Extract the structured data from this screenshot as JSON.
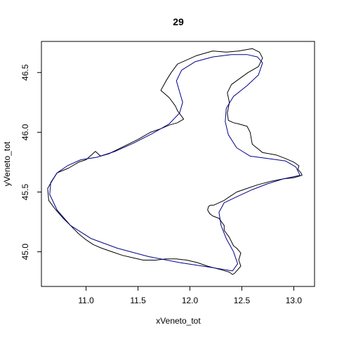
{
  "chart_data": {
    "type": "line",
    "title": "29",
    "xlabel": "xVeneto_tot",
    "ylabel": "yVeneto_tot",
    "xlim": [
      10.57,
      13.2
    ],
    "ylim": [
      44.71,
      46.76
    ],
    "x_ticks": [
      11.0,
      11.5,
      12.0,
      12.5,
      13.0
    ],
    "x_tick_labels": [
      "11.0",
      "11.5",
      "12.0",
      "12.5",
      "13.0"
    ],
    "y_ticks": [
      45.0,
      45.5,
      46.0,
      46.5
    ],
    "y_tick_labels": [
      "45.0",
      "45.5",
      "46.0",
      "46.5"
    ],
    "grid": false,
    "legend": "none",
    "series": [
      {
        "color": "#000000",
        "style": "jagged-boundary",
        "x": [
          12.43,
          12.49,
          12.47,
          12.49,
          12.45,
          12.42,
          12.38,
          12.33,
          12.33,
          12.28,
          12.22,
          12.19,
          12.17,
          12.18,
          12.2,
          12.23,
          12.28,
          12.33,
          12.38,
          12.45,
          12.55,
          12.65,
          12.78,
          12.9,
          13.0,
          13.08,
          13.07,
          13.04,
          13.05,
          13.0,
          12.92,
          12.83,
          12.7,
          12.6,
          12.58,
          12.55,
          12.47,
          12.42,
          12.37,
          12.36,
          12.38,
          12.36,
          12.4,
          12.48,
          12.56,
          12.66,
          12.7,
          12.67,
          12.6,
          12.47,
          12.35,
          12.22,
          12.06,
          11.88,
          11.82,
          11.77,
          11.72,
          11.8,
          11.86,
          11.88,
          11.94,
          11.88,
          11.8,
          11.72,
          11.62,
          11.5,
          11.36,
          11.22,
          11.14,
          11.09,
          11.0,
          10.93,
          10.83,
          10.72,
          10.67,
          10.63,
          10.64,
          10.7,
          10.78,
          10.85,
          10.93,
          11.0,
          11.07,
          11.15,
          11.25,
          11.35,
          11.45,
          11.55,
          11.67,
          11.77,
          11.87,
          11.97,
          12.07,
          12.17,
          12.3,
          12.38,
          12.41,
          12.43
        ],
        "y": [
          44.82,
          44.88,
          44.93,
          44.99,
          45.03,
          45.05,
          45.12,
          45.18,
          45.22,
          45.28,
          45.3,
          45.32,
          45.35,
          45.38,
          45.39,
          45.39,
          45.41,
          45.43,
          45.46,
          45.5,
          45.53,
          45.56,
          45.59,
          45.61,
          45.62,
          45.64,
          45.66,
          45.69,
          45.72,
          45.75,
          45.78,
          45.81,
          45.83,
          45.9,
          46.0,
          46.05,
          46.07,
          46.08,
          46.1,
          46.16,
          46.25,
          46.33,
          46.4,
          46.45,
          46.5,
          46.55,
          46.62,
          46.67,
          46.7,
          46.68,
          46.67,
          46.68,
          46.64,
          46.57,
          46.5,
          46.43,
          46.35,
          46.29,
          46.22,
          46.18,
          46.11,
          46.08,
          46.06,
          46.03,
          46.0,
          45.94,
          45.88,
          45.82,
          45.8,
          45.84,
          45.77,
          45.75,
          45.7,
          45.66,
          45.59,
          45.53,
          45.43,
          45.36,
          45.28,
          45.22,
          45.15,
          45.1,
          45.06,
          45.03,
          45.0,
          44.97,
          44.95,
          44.93,
          44.93,
          44.94,
          44.94,
          44.93,
          44.91,
          44.88,
          44.85,
          44.83,
          44.81,
          44.82
        ]
      },
      {
        "color": "#00008b",
        "style": "smooth",
        "x": [
          12.41,
          12.2,
          11.9,
          11.6,
          11.3,
          11.05,
          10.85,
          10.72,
          10.65,
          10.66,
          10.72,
          10.82,
          10.95,
          11.1,
          11.28,
          11.46,
          11.64,
          11.8,
          11.9,
          11.93,
          11.9,
          11.87,
          11.92,
          12.05,
          12.22,
          12.4,
          12.55,
          12.65,
          12.7,
          12.66,
          12.55,
          12.42,
          12.35,
          12.34,
          12.37,
          12.45,
          12.58,
          12.75,
          12.92,
          13.02,
          13.06,
          12.9,
          12.75,
          12.6,
          12.45,
          12.33,
          12.28,
          12.3,
          12.35,
          12.42,
          12.46,
          12.41
        ],
        "y": [
          44.84,
          44.87,
          44.91,
          44.96,
          45.03,
          45.11,
          45.22,
          45.35,
          45.48,
          45.58,
          45.66,
          45.72,
          45.77,
          45.79,
          45.84,
          45.91,
          45.99,
          46.07,
          46.16,
          46.25,
          46.34,
          46.43,
          46.52,
          46.59,
          46.63,
          46.65,
          46.65,
          46.63,
          46.58,
          46.48,
          46.39,
          46.3,
          46.2,
          46.09,
          45.98,
          45.87,
          45.8,
          45.78,
          45.76,
          45.71,
          45.64,
          45.61,
          45.57,
          45.52,
          45.46,
          45.41,
          45.33,
          45.22,
          45.11,
          45.0,
          44.9,
          44.84
        ]
      }
    ]
  }
}
